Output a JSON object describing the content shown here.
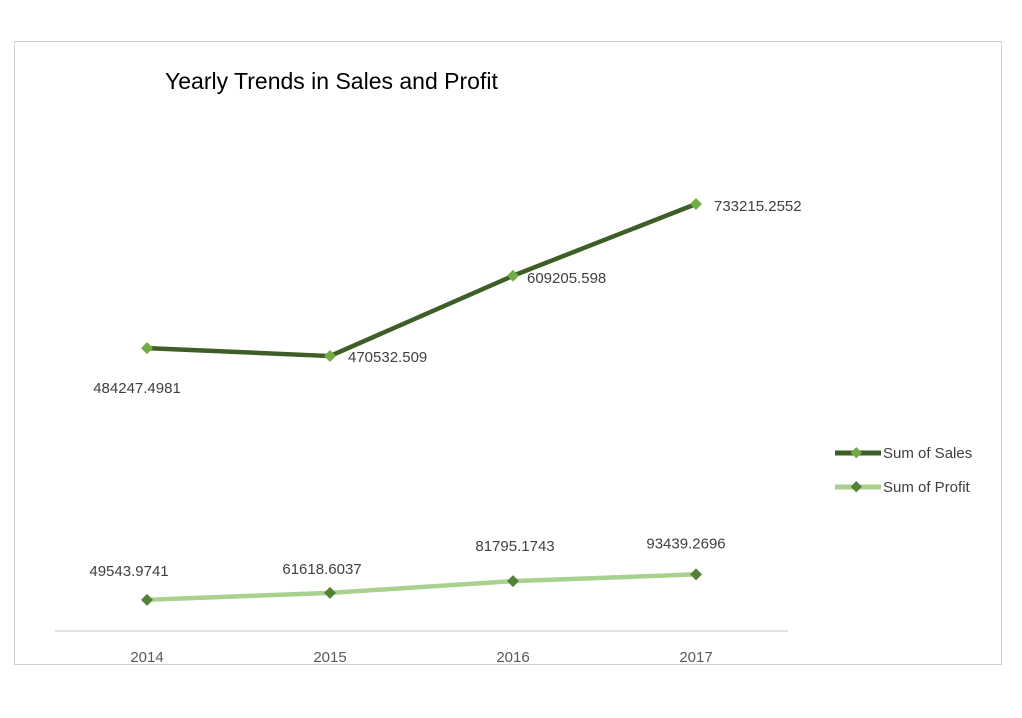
{
  "chart_data": {
    "type": "line",
    "title": "Yearly Trends in Sales and Profit",
    "xlabel": "",
    "ylabel": "",
    "categories": [
      "2014",
      "2015",
      "2016",
      "2017"
    ],
    "series": [
      {
        "name": "Sum of Sales",
        "values": [
          484247.4981,
          470532.509,
          609205.598,
          733215.2552
        ],
        "labels": [
          "484247.4981",
          "470532.509",
          "609205.598",
          "733215.2552"
        ],
        "color": "#3d5e26",
        "marker_color": "#70ad47"
      },
      {
        "name": "Sum of Profit",
        "values": [
          49543.9741,
          61618.6037,
          81795.1743,
          93439.2696
        ],
        "labels": [
          "49543.9741",
          "61618.6037",
          "81795.1743",
          "93439.2696"
        ],
        "color": "#a9d18e",
        "marker_color": "#548235"
      }
    ],
    "ylim": [
      0,
      800000
    ],
    "grid": false,
    "y_axis_visible": false,
    "legend": "right",
    "data_labels": true
  }
}
